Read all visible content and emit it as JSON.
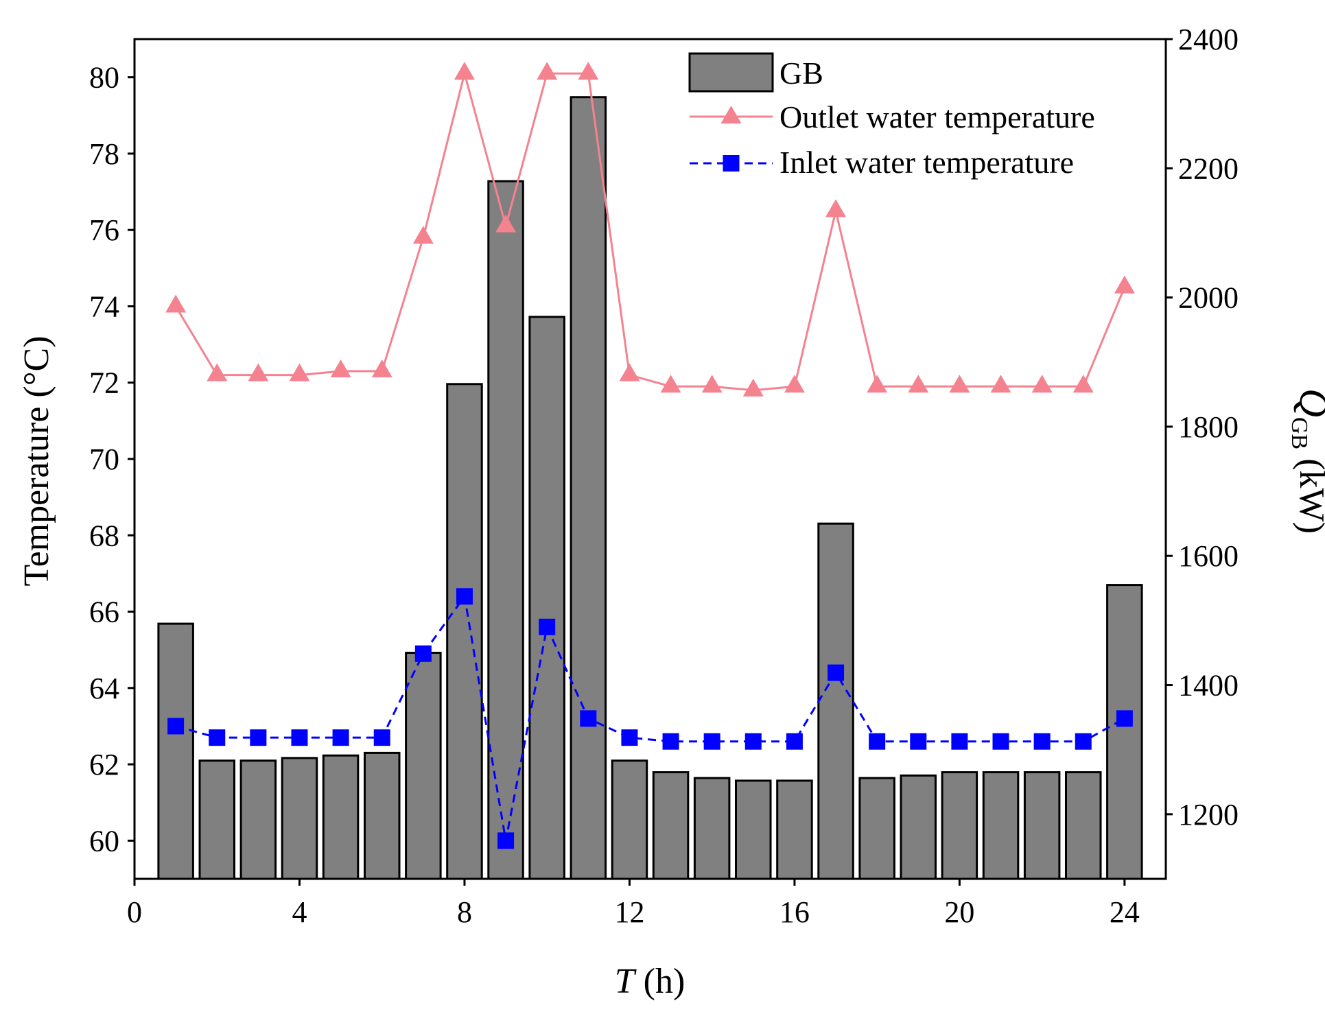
{
  "chart_data": {
    "type": "bar+line",
    "title": "",
    "x": [
      1,
      2,
      3,
      4,
      5,
      6,
      7,
      8,
      9,
      10,
      11,
      12,
      13,
      14,
      15,
      16,
      17,
      18,
      19,
      20,
      21,
      22,
      23,
      24
    ],
    "xlabel": {
      "italic": "T",
      "rest": " (h)"
    },
    "xlim": [
      0,
      25
    ],
    "xticks": [
      "0",
      "4",
      "8",
      "12",
      "16",
      "20",
      "24"
    ],
    "xtick_values": [
      0,
      4,
      8,
      12,
      16,
      20,
      24
    ],
    "ylabel_left": "Temperature (°C)",
    "ylim_left": [
      59,
      81
    ],
    "yticks_left": [
      "60",
      "62",
      "64",
      "66",
      "68",
      "70",
      "72",
      "74",
      "76",
      "78",
      "80"
    ],
    "ytick_values_left": [
      60,
      62,
      64,
      66,
      68,
      70,
      72,
      74,
      76,
      78,
      80
    ],
    "ylabel_right": {
      "italic": "Q",
      "subscript": "GB",
      "rest": " (kW)"
    },
    "ylim_right": [
      1100,
      2400
    ],
    "yticks_right": [
      "1200",
      "1400",
      "1600",
      "1800",
      "2000",
      "2200",
      "2400"
    ],
    "ytick_values_right": [
      1200,
      1400,
      1600,
      1800,
      2000,
      2200,
      2400
    ],
    "grid": false,
    "legend_position": "top-right",
    "series": [
      {
        "name": "GB",
        "kind": "bar",
        "axis": "right",
        "color": "#808080",
        "values": [
          1495,
          1283,
          1283,
          1287,
          1291,
          1295,
          1450,
          1866,
          2180,
          1970,
          2310,
          1283,
          1265,
          1256,
          1252,
          1252,
          1650,
          1256,
          1260,
          1265,
          1265,
          1265,
          1265,
          1555
        ]
      },
      {
        "name": "Outlet water temperature",
        "kind": "line",
        "axis": "left",
        "color": "#f4828f",
        "marker": "triangle",
        "values": [
          74.0,
          72.2,
          72.2,
          72.2,
          72.3,
          72.3,
          75.8,
          80.1,
          76.1,
          80.1,
          80.1,
          72.2,
          71.9,
          71.9,
          71.8,
          71.9,
          76.5,
          71.9,
          71.9,
          71.9,
          71.9,
          71.9,
          71.9,
          74.5
        ]
      },
      {
        "name": "Inlet water temperature",
        "kind": "line",
        "axis": "left",
        "color": "#0000ff",
        "dashed": true,
        "marker": "square",
        "values": [
          63.0,
          62.7,
          62.7,
          62.7,
          62.7,
          62.7,
          64.9,
          66.4,
          60.0,
          65.6,
          63.2,
          62.7,
          62.6,
          62.6,
          62.6,
          62.6,
          64.4,
          62.6,
          62.6,
          62.6,
          62.6,
          62.6,
          62.6,
          63.2
        ]
      }
    ]
  }
}
